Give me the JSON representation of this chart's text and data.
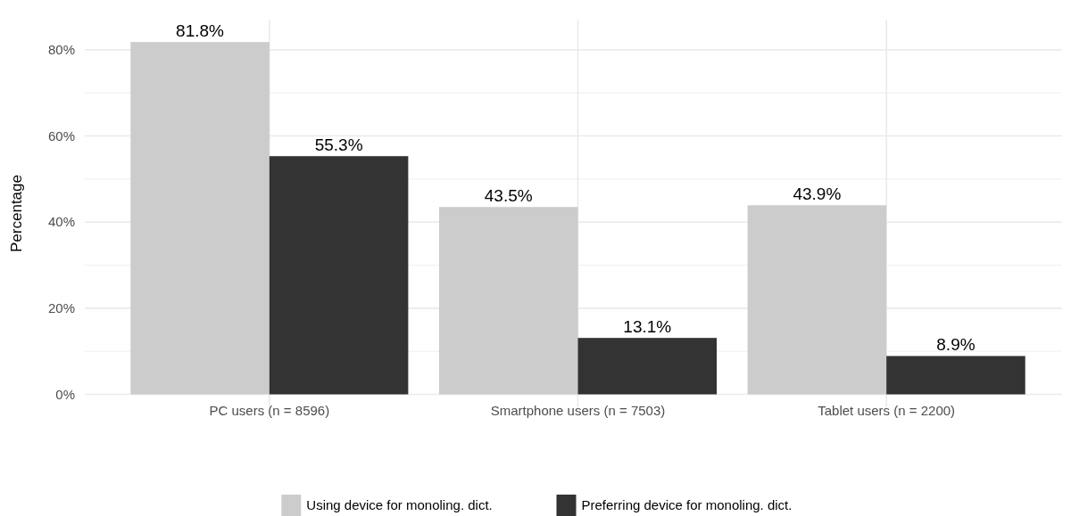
{
  "chart_data": {
    "type": "bar",
    "ylabel": "Percentage",
    "categories": [
      "PC users (n = 8596)",
      "Smartphone users (n = 7503)",
      "Tablet users (n = 2200)"
    ],
    "series": [
      {
        "name": "Using device for monoling. dict.",
        "color": "#cccccc",
        "values": [
          81.8,
          43.5,
          43.9
        ],
        "value_labels": [
          "81.8%",
          "43.5%",
          "43.9%"
        ]
      },
      {
        "name": "Preferring device for monoling. dict.",
        "color": "#333333",
        "values": [
          55.3,
          13.1,
          8.9
        ],
        "value_labels": [
          "55.3%",
          "13.1%",
          "8.9%"
        ]
      }
    ],
    "ylim": [
      -3,
      87
    ],
    "yticks": [
      {
        "value": 0,
        "label": "0%"
      },
      {
        "value": 10,
        "label": null
      },
      {
        "value": 20,
        "label": "20%"
      },
      {
        "value": 30,
        "label": null
      },
      {
        "value": 40,
        "label": "40%"
      },
      {
        "value": 50,
        "label": null
      },
      {
        "value": 60,
        "label": "60%"
      },
      {
        "value": 70,
        "label": null
      },
      {
        "value": 80,
        "label": "80%"
      }
    ],
    "grid": true,
    "legend": "bottom"
  }
}
